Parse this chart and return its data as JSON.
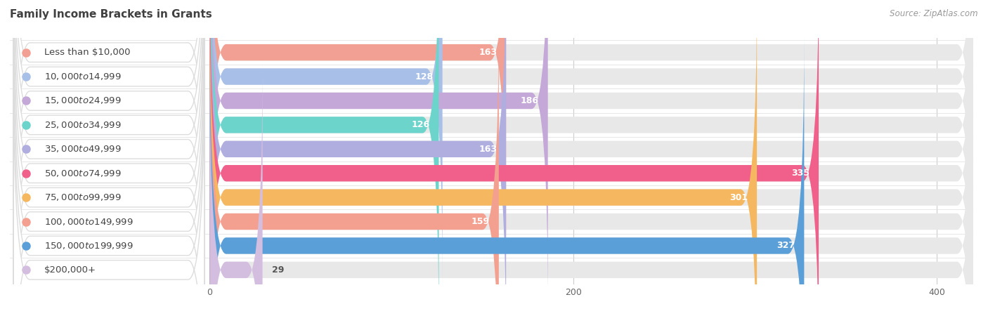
{
  "title": "Family Income Brackets in Grants",
  "source": "Source: ZipAtlas.com",
  "categories": [
    "Less than $10,000",
    "$10,000 to $14,999",
    "$15,000 to $24,999",
    "$25,000 to $34,999",
    "$35,000 to $49,999",
    "$50,000 to $74,999",
    "$75,000 to $99,999",
    "$100,000 to $149,999",
    "$150,000 to $199,999",
    "$200,000+"
  ],
  "values": [
    163,
    128,
    186,
    126,
    163,
    335,
    301,
    159,
    327,
    29
  ],
  "bar_colors": [
    "#F2A093",
    "#A8C0E8",
    "#C4A8D8",
    "#6DD4CC",
    "#B0AEDE",
    "#F0608A",
    "#F5B860",
    "#F4A090",
    "#5B9FD8",
    "#D4BEE0"
  ],
  "xlim_data": [
    -110,
    420
  ],
  "xlim_display": [
    0,
    400
  ],
  "xticks": [
    0,
    200,
    400
  ],
  "background_color": "#ffffff",
  "bar_bg_color": "#e8e8e8",
  "title_fontsize": 11,
  "label_fontsize": 9.5,
  "value_fontsize": 9
}
